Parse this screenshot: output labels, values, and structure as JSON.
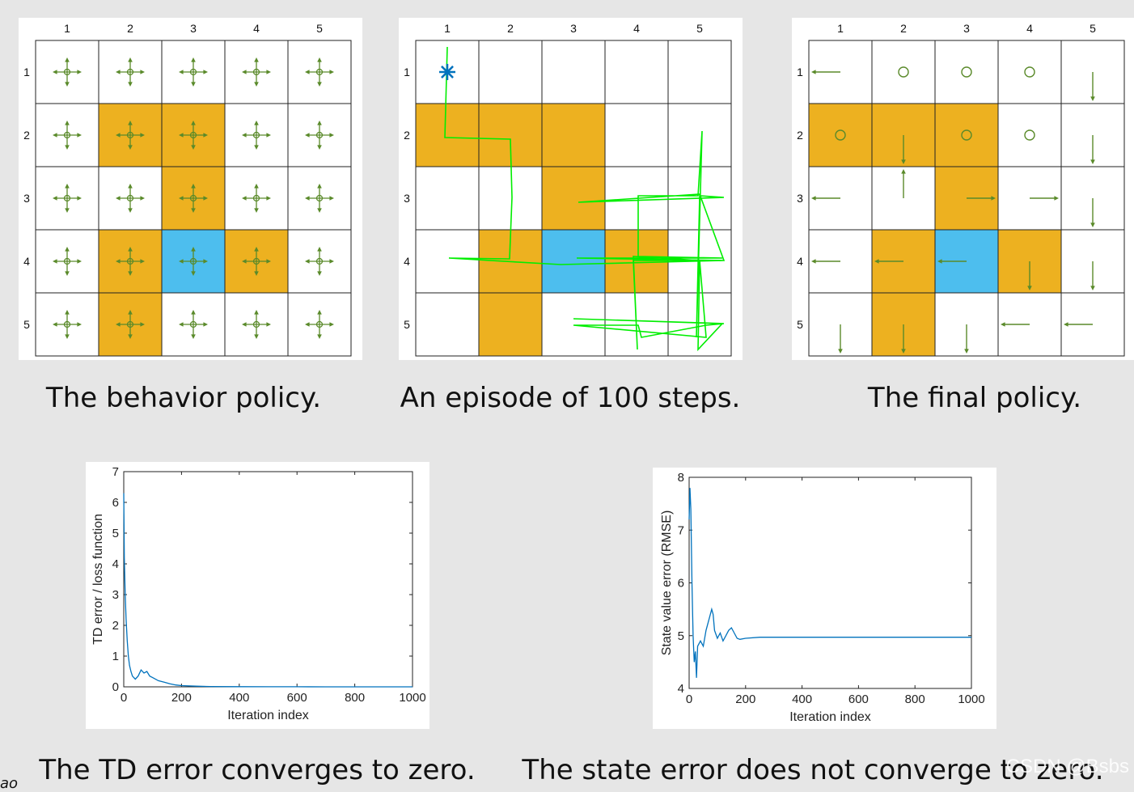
{
  "captions": {
    "behavior": "The behavior policy.",
    "episode": "An episode of 100 steps.",
    "final": "The final policy.",
    "td": "The TD error converges to zero.",
    "state": "The state error does not converge to zero."
  },
  "watermark": "CSDN @Bsbs",
  "corner_text": "ao",
  "colors": {
    "forbidden": "#edb120",
    "target": "#4dbeee",
    "arrow": "#5a8a2a",
    "trajectory": "#00ee00",
    "line": "#0072bd",
    "start_marker": "#0072bd"
  },
  "grid": {
    "col_labels": [
      "1",
      "2",
      "3",
      "4",
      "5"
    ],
    "row_labels": [
      "1",
      "2",
      "3",
      "4",
      "5"
    ],
    "cells": [
      [
        "white",
        "white",
        "white",
        "white",
        "white"
      ],
      [
        "forbidden",
        "forbidden",
        "forbidden",
        "white",
        "white"
      ],
      [
        "white",
        "white",
        "forbidden",
        "white",
        "white"
      ],
      [
        "white",
        "forbidden",
        "target",
        "forbidden",
        "white"
      ],
      [
        "white",
        "forbidden",
        "white",
        "white",
        "white"
      ]
    ],
    "cells_behavior": [
      [
        "white",
        "white",
        "white",
        "white",
        "white"
      ],
      [
        "white",
        "forbidden",
        "forbidden",
        "white",
        "white"
      ],
      [
        "white",
        "white",
        "forbidden",
        "white",
        "white"
      ],
      [
        "white",
        "forbidden",
        "target",
        "forbidden",
        "white"
      ],
      [
        "white",
        "forbidden",
        "white",
        "white",
        "white"
      ]
    ],
    "final_policy": [
      [
        "left",
        "stay",
        "stay",
        "stay",
        "down"
      ],
      [
        "stay",
        "down",
        "stay",
        "stay",
        "down"
      ],
      [
        "left",
        "up",
        "right",
        "right",
        "down"
      ],
      [
        "left",
        "left",
        "left",
        "down",
        "down"
      ],
      [
        "down",
        "down",
        "down",
        "left",
        "left"
      ]
    ]
  },
  "chart_data": [
    {
      "type": "line",
      "title": "",
      "xlabel": "Iteration index",
      "ylabel": "TD error / loss function",
      "xlim": [
        0,
        1000
      ],
      "ylim": [
        0,
        7
      ],
      "xticks": [
        "0",
        "200",
        "400",
        "600",
        "800",
        "1000"
      ],
      "yticks": [
        "0",
        "1",
        "2",
        "3",
        "4",
        "5",
        "6",
        "7"
      ],
      "series": [
        {
          "x": [
            0,
            2,
            5,
            8,
            12,
            16,
            20,
            25,
            30,
            40,
            50,
            60,
            70,
            80,
            90,
            100,
            120,
            140,
            160,
            180,
            200,
            250,
            300,
            400,
            500,
            600,
            700,
            800,
            900,
            1000
          ],
          "values": [
            6.3,
            4.2,
            3.0,
            2.2,
            1.5,
            1.0,
            0.7,
            0.5,
            0.35,
            0.25,
            0.35,
            0.55,
            0.45,
            0.5,
            0.35,
            0.3,
            0.2,
            0.15,
            0.1,
            0.06,
            0.04,
            0.02,
            0.01,
            0.005,
            0.003,
            0.002,
            0.001,
            0.001,
            0.001,
            0.001
          ]
        }
      ]
    },
    {
      "type": "line",
      "title": "",
      "xlabel": "Iteration index",
      "ylabel": "State value error (RMSE)",
      "xlim": [
        0,
        1000
      ],
      "ylim": [
        4,
        8
      ],
      "xticks": [
        "0",
        "200",
        "400",
        "600",
        "800",
        "1000"
      ],
      "yticks": [
        "4",
        "5",
        "6",
        "7",
        "8"
      ],
      "series": [
        {
          "x": [
            0,
            3,
            6,
            10,
            14,
            18,
            22,
            26,
            30,
            40,
            50,
            60,
            70,
            80,
            85,
            90,
            100,
            110,
            120,
            130,
            140,
            150,
            160,
            170,
            180,
            200,
            250,
            300,
            400,
            500,
            600,
            700,
            800,
            900,
            1000
          ],
          "values": [
            7.2,
            7.8,
            7.4,
            6.0,
            5.0,
            4.5,
            4.7,
            4.2,
            4.8,
            4.9,
            4.8,
            5.1,
            5.3,
            5.5,
            5.4,
            5.1,
            4.95,
            5.05,
            4.9,
            5.0,
            5.1,
            5.15,
            5.05,
            4.95,
            4.93,
            4.95,
            4.97,
            4.97,
            4.97,
            4.97,
            4.97,
            4.97,
            4.97,
            4.97,
            4.97
          ]
        }
      ]
    }
  ]
}
